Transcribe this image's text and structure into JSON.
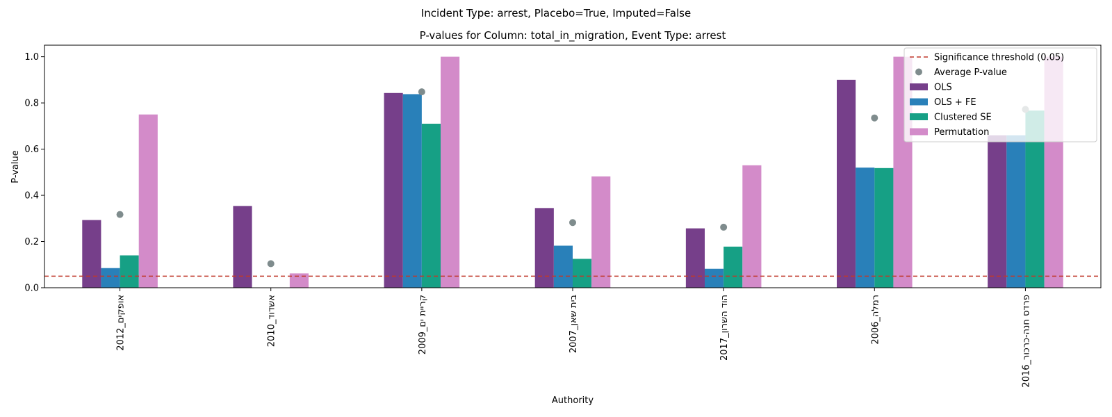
{
  "suptitle": "Incident Type: arrest, Placebo=True, Imputed=False",
  "chart_data": {
    "type": "bar",
    "title": "P-values for Column: total_in_migration, Event Type: arrest",
    "xlabel": "Authority",
    "ylabel": "P-value",
    "ylim": [
      0,
      1.05
    ],
    "yticks": [
      "0.0",
      "0.2",
      "0.4",
      "0.6",
      "0.8",
      "1.0"
    ],
    "categories": [
      "אופקים_2012",
      "אשדוד_2010",
      "קריית ים_2009",
      "בית שאן_2007",
      "הוד השרון_2017",
      "רמלה_2006",
      "פרדס חנה-כרכור_2016"
    ],
    "series": [
      {
        "name": "OLS",
        "color": "#763f8a",
        "values": [
          0.293,
          0.354,
          0.843,
          0.345,
          0.257,
          0.9,
          0.66
        ]
      },
      {
        "name": "OLS + FE",
        "color": "#2980b9",
        "values": [
          0.085,
          null,
          0.838,
          0.182,
          0.082,
          0.52,
          0.66
        ]
      },
      {
        "name": "Clustered SE",
        "color": "#16a085",
        "values": [
          0.14,
          null,
          0.71,
          0.125,
          0.178,
          0.518,
          0.767
        ]
      },
      {
        "name": "Permutation",
        "color": "#d38bc9",
        "values": [
          0.75,
          0.062,
          1.0,
          0.482,
          0.53,
          1.0,
          1.0
        ]
      }
    ],
    "average": {
      "name": "Average P-value",
      "color": "#7f8c8d",
      "values": [
        0.317,
        0.104,
        0.848,
        0.282,
        0.262,
        0.735,
        0.772
      ]
    },
    "threshold": {
      "name": "Significance threshold (0.05)",
      "value": 0.05,
      "color": "#c0392b"
    },
    "legend_position": "top-right",
    "grid": false
  }
}
